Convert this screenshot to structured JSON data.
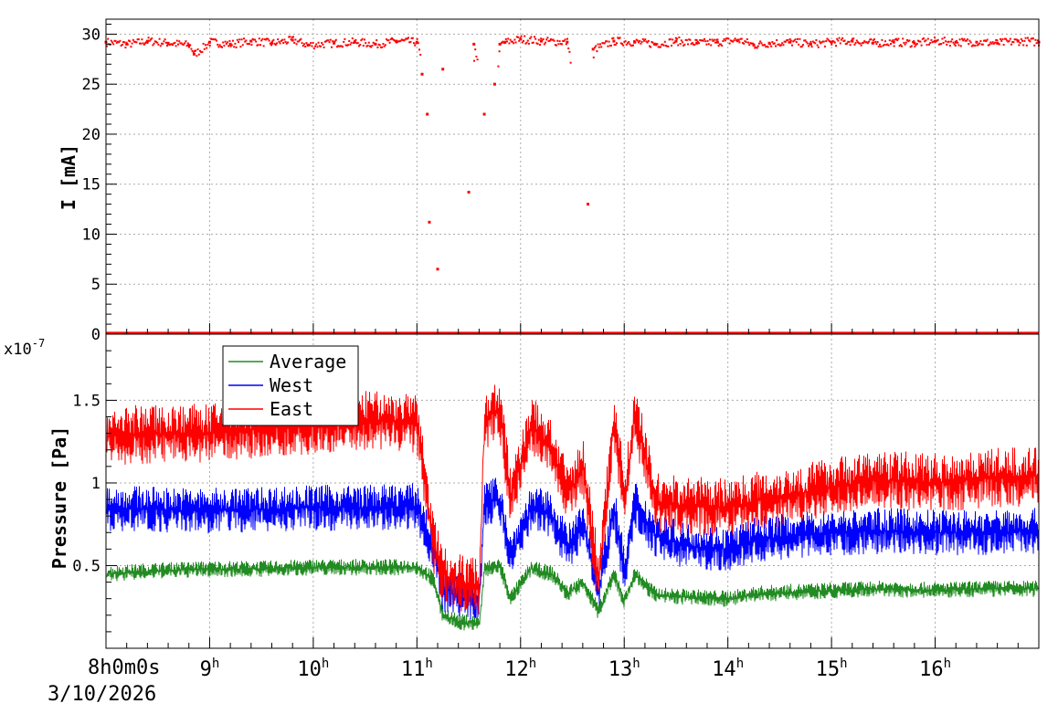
{
  "chart_data": [
    {
      "type": "scatter",
      "ylabel": "I [mA]",
      "xlim": [
        8,
        17
      ],
      "ylim": [
        0,
        31.5
      ],
      "yticks": [
        0,
        5,
        10,
        15,
        20,
        25,
        30
      ],
      "grid": true,
      "series": [
        {
          "color": "#ff0000",
          "x": [
            8.0,
            8.2,
            8.4,
            8.6,
            8.8,
            8.85,
            9.0,
            9.2,
            9.4,
            9.6,
            9.8,
            9.95,
            10.2,
            10.4,
            10.6,
            10.8,
            11.0,
            11.05,
            11.1,
            11.12,
            11.2,
            11.25,
            11.5,
            11.55,
            11.65,
            11.75,
            11.8,
            11.85,
            12.0,
            12.2,
            12.45,
            12.65,
            12.7,
            12.9,
            13.1,
            13.3,
            13.5,
            13.7,
            13.9,
            14.1,
            14.25,
            14.4,
            14.6,
            14.8,
            15.0,
            15.2,
            15.4,
            15.6,
            15.8,
            16.0,
            16.2,
            16.4,
            16.6,
            16.8,
            17.0
          ],
          "y": [
            29.2,
            29.0,
            29.3,
            29.1,
            28.9,
            28.0,
            29.2,
            29.0,
            29.3,
            29.1,
            29.4,
            28.9,
            29.1,
            29.2,
            29.0,
            29.3,
            29.2,
            26.0,
            22.0,
            11.2,
            6.5,
            26.5,
            14.2,
            29.0,
            22.0,
            25.0,
            29.0,
            29.2,
            29.5,
            29.3,
            29.2,
            13.0,
            28.5,
            29.3,
            29.2,
            29.0,
            29.3,
            29.1,
            29.2,
            29.4,
            28.9,
            29.1,
            29.2,
            29.0,
            29.2,
            29.3,
            29.1,
            29.2,
            29.1,
            29.3,
            29.2,
            29.2,
            29.1,
            29.3,
            29.2
          ]
        }
      ]
    },
    {
      "type": "line",
      "ylabel": "Pressure [Pa]",
      "scale_label": "x10-7",
      "xlim": [
        8,
        17
      ],
      "ylim": [
        0,
        1.9
      ],
      "yticks": [
        0.5,
        1,
        1.5
      ],
      "grid": true,
      "legend_position": "top-left",
      "xlabel_start": "8h0m0s",
      "date": "3/10/2026",
      "xticks": [
        9,
        10,
        11,
        12,
        13,
        14,
        15,
        16
      ],
      "x": [
        8.0,
        8.5,
        9.0,
        9.5,
        10.0,
        10.5,
        11.0,
        11.15,
        11.25,
        11.4,
        11.6,
        11.65,
        11.8,
        11.9,
        12.1,
        12.3,
        12.45,
        12.6,
        12.75,
        12.9,
        13.0,
        13.1,
        13.3,
        13.6,
        14.0,
        14.3,
        14.6,
        15.0,
        15.5,
        16.0,
        16.5,
        17.0
      ],
      "series": [
        {
          "name": "Average",
          "color": "#228b22",
          "values": [
            0.45,
            0.47,
            0.48,
            0.48,
            0.49,
            0.49,
            0.49,
            0.42,
            0.2,
            0.16,
            0.15,
            0.48,
            0.5,
            0.3,
            0.48,
            0.45,
            0.33,
            0.4,
            0.22,
            0.45,
            0.28,
            0.45,
            0.32,
            0.31,
            0.3,
            0.33,
            0.34,
            0.35,
            0.36,
            0.35,
            0.36,
            0.36
          ]
        },
        {
          "name": "West",
          "color": "#0000ff",
          "values": [
            0.85,
            0.84,
            0.83,
            0.84,
            0.85,
            0.85,
            0.86,
            0.6,
            0.36,
            0.33,
            0.3,
            0.88,
            0.9,
            0.55,
            0.85,
            0.8,
            0.6,
            0.75,
            0.35,
            0.85,
            0.45,
            0.88,
            0.68,
            0.62,
            0.6,
            0.66,
            0.68,
            0.7,
            0.71,
            0.7,
            0.7,
            0.71
          ]
        },
        {
          "name": "East",
          "color": "#ff0000",
          "values": [
            1.28,
            1.3,
            1.3,
            1.33,
            1.35,
            1.38,
            1.36,
            0.65,
            0.45,
            0.4,
            0.37,
            1.38,
            1.45,
            0.9,
            1.35,
            1.2,
            0.92,
            1.1,
            0.4,
            1.4,
            0.9,
            1.42,
            0.88,
            0.86,
            0.85,
            0.9,
            0.92,
            0.98,
            1.02,
            1.0,
            1.03,
            1.04
          ]
        }
      ]
    }
  ]
}
